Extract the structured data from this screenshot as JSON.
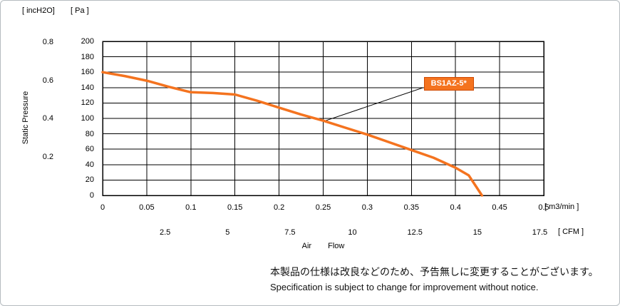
{
  "labels": {
    "unit_inh2o": "[ incH2O]",
    "unit_pa": "[ Pa ]",
    "y_axis_title": "Static Pressure",
    "x_axis_title": "Air Flow",
    "unit_m3min": "[ m3/min ]",
    "unit_cfm": "[ CFM ]",
    "note_jp": "本製品の仕様は改良などのため、予告無しに変更することがございます。",
    "note_en": "Specification is subject to change for improvement without notice."
  },
  "chart_data": {
    "type": "line",
    "title": "",
    "x_axis": {
      "label": "Air Flow",
      "unit": "m3/min",
      "min": 0,
      "max": 0.5,
      "ticks": [
        "0",
        "0.05",
        "0.1",
        "0.15",
        "0.2",
        "0.25",
        "0.3",
        "0.35",
        "0.4",
        "0.45",
        "0.5"
      ]
    },
    "x_axis_secondary": {
      "unit": "CFM",
      "ticks": [
        "2.5",
        "5",
        "7.5",
        "10",
        "12.5",
        "15",
        "17.5"
      ],
      "cfm_to_m3min": 0.0283168
    },
    "y_axis": {
      "label": "Static Pressure",
      "unit": "Pa",
      "min": 0,
      "max": 200,
      "ticks": [
        "200",
        "180",
        "160",
        "140",
        "120",
        "100",
        "80",
        "60",
        "40",
        "20",
        "0"
      ]
    },
    "y_axis_secondary": {
      "unit": "incH2O",
      "ticks": [
        "0.8",
        "0.6",
        "0.4",
        "0.2"
      ],
      "inh2o_to_pa": 249.09
    },
    "grid": true,
    "legend_position": "annotation-box",
    "series": [
      {
        "name": "BS1AZ-5*",
        "color": "#f4731f",
        "points": [
          [
            0,
            160
          ],
          [
            0.025,
            155
          ],
          [
            0.05,
            149
          ],
          [
            0.075,
            141
          ],
          [
            0.1,
            134
          ],
          [
            0.125,
            133
          ],
          [
            0.15,
            131
          ],
          [
            0.175,
            123
          ],
          [
            0.2,
            114
          ],
          [
            0.225,
            105
          ],
          [
            0.25,
            97
          ],
          [
            0.275,
            88
          ],
          [
            0.3,
            79
          ],
          [
            0.325,
            69
          ],
          [
            0.35,
            59
          ],
          [
            0.375,
            49
          ],
          [
            0.4,
            36
          ],
          [
            0.415,
            26
          ],
          [
            0.43,
            0
          ]
        ]
      }
    ],
    "annotation": {
      "label": "BS1AZ-5*",
      "box": [
        0.364,
        154
      ],
      "pointer": {
        "from": [
          0.25,
          96
        ],
        "to": [
          0.3635,
          140
        ]
      },
      "box_bg": "#f4731f",
      "box_border": "#d04a02",
      "box_text_color": "#ffffff"
    }
  }
}
